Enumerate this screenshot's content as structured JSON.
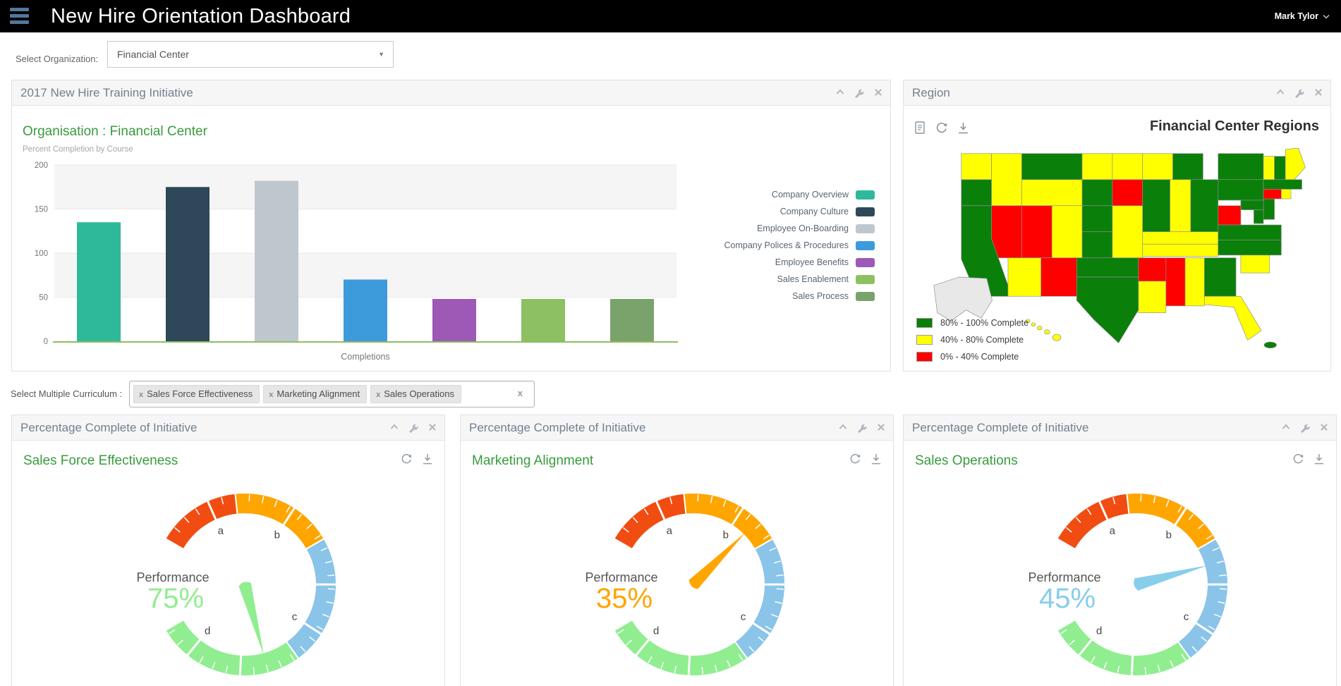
{
  "topbar": {
    "title": "New Hire Orientation Dashboard",
    "user_label": "Mark Tylor"
  },
  "filters": {
    "organization": {
      "label": "Select Organization:",
      "value": "Financial Center"
    },
    "curriculum": {
      "label": "Select Multiple Curriculum :",
      "selected": [
        "Sales Force Effectiveness",
        "Marketing Alignment",
        "Sales Operations"
      ],
      "clear_glyph": "x",
      "chip_remove_glyph": "x"
    }
  },
  "panels": {
    "training": {
      "header": "2017 New Hire Training Initiative"
    },
    "region": {
      "header": "Region"
    },
    "gauge_header": "Percentage Complete of Initiative"
  },
  "chart_data": [
    {
      "type": "bar",
      "title": "Organisation : Financial Center",
      "subtitle": "Percent Completion by Course",
      "xlabel": "Completions",
      "ylim": [
        0,
        200
      ],
      "yticks": [
        0,
        50,
        100,
        150,
        200
      ],
      "grid": true,
      "legend_position": "right",
      "axis_line_color": "#8fbe5b",
      "series": [
        {
          "name": "Company Overview",
          "value": 135,
          "color": "#2eb99b"
        },
        {
          "name": "Company Culture",
          "value": 175,
          "color": "#2f4859"
        },
        {
          "name": "Employee On-Boarding",
          "value": 182,
          "color": "#bfc7ce"
        },
        {
          "name": "Company Polices & Procedures",
          "value": 70,
          "color": "#3d9bdc"
        },
        {
          "name": "Employee Benefits",
          "value": 48,
          "color": "#9d59b5"
        },
        {
          "name": "Sales Enablement",
          "value": 48,
          "color": "#8dc063"
        },
        {
          "name": "Sales Process",
          "value": 48,
          "color": "#7aa36b"
        }
      ]
    },
    {
      "type": "choropleth",
      "title": "Financial Center Regions",
      "legend": [
        {
          "label": "80% - 100% Complete",
          "band": "high",
          "color": "#0a7f0a"
        },
        {
          "label": "40% - 80% Complete",
          "band": "mid",
          "color": "#ffff00"
        },
        {
          "label": "0% - 40% Complete",
          "band": "low",
          "color": "#ff0000"
        }
      ],
      "no_data_color": "#e8e8e8",
      "states": {
        "WA": "mid",
        "OR": "high",
        "CA": "high",
        "ID": "mid",
        "NV": "low",
        "MT": "high",
        "WY": "mid",
        "UT": "low",
        "CO": "mid",
        "AZ": "mid",
        "NM": "low",
        "ND": "mid",
        "SD": "high",
        "NE": "high",
        "KS": "high",
        "OK": "high",
        "TX": "high",
        "MN": "mid",
        "IA": "low",
        "MO": "mid",
        "AR": "low",
        "LA": "mid",
        "WI": "mid",
        "IL": "high",
        "IN": "mid",
        "OH": "high",
        "MI": "high",
        "KY": "mid",
        "TN": "mid",
        "MS": "low",
        "AL": "mid",
        "GA": "high",
        "FL": "mid",
        "WV": "low",
        "VA": "high",
        "NC": "high",
        "SC": "mid",
        "PA": "high",
        "NY": "high",
        "NJ": "high",
        "MD": "high",
        "DE": "high",
        "VT": "mid",
        "NH": "high",
        "ME": "mid",
        "MA": "high",
        "CT": "low",
        "RI": "mid",
        "AK": "none",
        "HI": "mid",
        "PR": "high"
      }
    },
    {
      "type": "gauge",
      "title": "Sales Force Effectiveness",
      "metric_label": "Performance",
      "value": 75,
      "unit": "%",
      "color": "#90ee90",
      "segments": [
        {
          "from": 0,
          "to": 18,
          "color": "#f14c11"
        },
        {
          "from": 18,
          "to": 40,
          "color": "#ffa500"
        },
        {
          "from": 40,
          "to": 68,
          "color": "#8ac4e8"
        },
        {
          "from": 68,
          "to": 100,
          "color": "#90ee90"
        }
      ],
      "markers": [
        12,
        31,
        50,
        61,
        81,
        93
      ],
      "tick_labels": [
        {
          "text": "a",
          "value": 12
        },
        {
          "text": "b",
          "value": 31
        },
        {
          "text": "c",
          "value": 61
        },
        {
          "text": "d",
          "value": 93
        }
      ]
    },
    {
      "type": "gauge",
      "title": "Marketing Alignment",
      "metric_label": "Performance",
      "value": 35,
      "unit": "%",
      "color": "#ffa500",
      "segments": [
        {
          "from": 0,
          "to": 18,
          "color": "#f14c11"
        },
        {
          "from": 18,
          "to": 40,
          "color": "#ffa500"
        },
        {
          "from": 40,
          "to": 68,
          "color": "#8ac4e8"
        },
        {
          "from": 68,
          "to": 100,
          "color": "#90ee90"
        }
      ],
      "markers": [
        12,
        31,
        50,
        61,
        81,
        93
      ],
      "tick_labels": [
        {
          "text": "a",
          "value": 12
        },
        {
          "text": "b",
          "value": 31
        },
        {
          "text": "c",
          "value": 61
        },
        {
          "text": "d",
          "value": 93
        }
      ]
    },
    {
      "type": "gauge",
      "title": "Sales Operations",
      "metric_label": "Performance",
      "value": 45,
      "unit": "%",
      "color": "#87ceeb",
      "segments": [
        {
          "from": 0,
          "to": 18,
          "color": "#f14c11"
        },
        {
          "from": 18,
          "to": 40,
          "color": "#ffa500"
        },
        {
          "from": 40,
          "to": 68,
          "color": "#8ac4e8"
        },
        {
          "from": 68,
          "to": 100,
          "color": "#90ee90"
        }
      ],
      "markers": [
        12,
        31,
        50,
        61,
        81,
        93
      ],
      "tick_labels": [
        {
          "text": "a",
          "value": 12
        },
        {
          "text": "b",
          "value": 31
        },
        {
          "text": "c",
          "value": 61
        },
        {
          "text": "d",
          "value": 93
        }
      ]
    }
  ]
}
